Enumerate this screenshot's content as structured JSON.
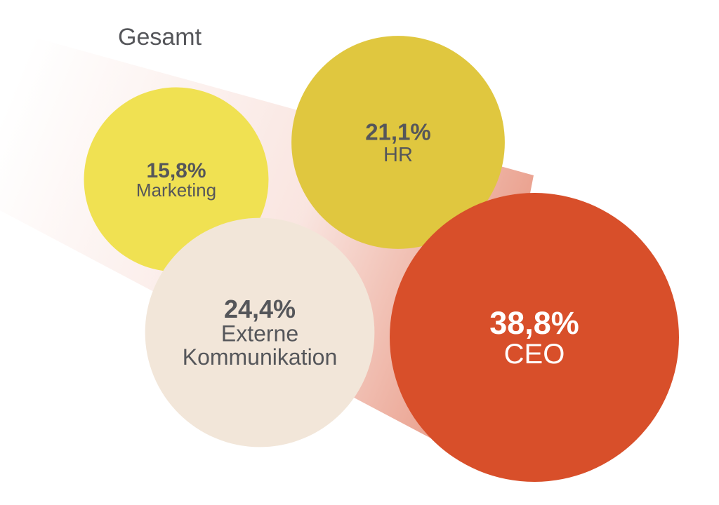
{
  "chart_data": {
    "type": "bubble",
    "title": "Gesamt",
    "title_color": "#55565a",
    "series": [
      {
        "name": "Marketing",
        "value": 15.8,
        "value_label": "15,8%",
        "label_lines": [
          "Marketing"
        ],
        "color": "#f0e152",
        "text_color": "#55565a"
      },
      {
        "name": "HR",
        "value": 21.1,
        "value_label": "21,1%",
        "label_lines": [
          "HR"
        ],
        "color": "#e0c73f",
        "text_color": "#55565a"
      },
      {
        "name": "Externe Kommunikation",
        "value": 24.4,
        "value_label": "24,4%",
        "label_lines": [
          "Externe",
          "Kommunikation"
        ],
        "color": "#f2e6d9",
        "text_color": "#55565a"
      },
      {
        "name": "CEO",
        "value": 38.8,
        "value_label": "38,8%",
        "label_lines": [
          "CEO"
        ],
        "color": "#d84f2a",
        "text_color": "#ffffff"
      }
    ],
    "trail_color": "#e58a73"
  }
}
